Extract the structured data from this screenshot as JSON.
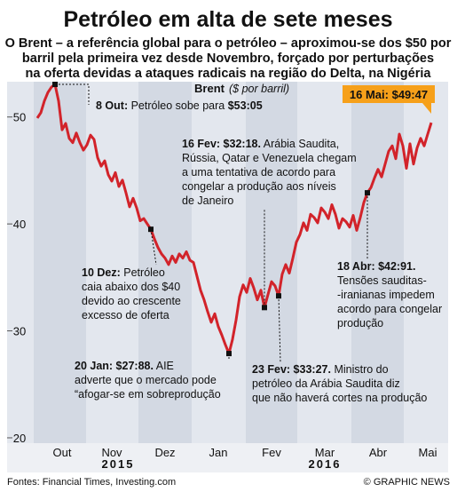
{
  "chart_data": {
    "type": "line",
    "title": "Petróleo em alta de sete meses",
    "subtitle": [
      "O Brent – a referência global para o petróleo – aproximou-se dos $50 por",
      "barril pela primeira vez desde Novembro, forçado por perturbações",
      "na oferta devidas a ataques radicais na região do Delta, na Nigéria"
    ],
    "series_label": "Brent",
    "unit_label": "($ por barril)",
    "categories": [
      null,
      null,
      null,
      null,
      null,
      null,
      null,
      "Out",
      null,
      null,
      null,
      null,
      null,
      null,
      null,
      null,
      null,
      null,
      null,
      null,
      null,
      "Nov",
      null,
      null,
      null,
      null,
      null,
      null,
      null,
      null,
      null,
      null,
      null,
      null,
      null,
      null,
      "Dez",
      null,
      null,
      null,
      null,
      null,
      null,
      null,
      null,
      null,
      null,
      null,
      null,
      null,
      null,
      "Jan",
      null,
      null,
      null,
      null,
      null,
      null,
      null,
      null,
      null,
      null,
      null,
      null,
      null,
      null,
      "Fev",
      null,
      null,
      null,
      null,
      null,
      null,
      null,
      null,
      null,
      null,
      null,
      null,
      null,
      null,
      "Mar",
      null,
      null,
      null,
      null,
      null,
      null,
      null,
      null,
      null,
      null,
      null,
      null,
      null,
      null,
      "Abr",
      null,
      null,
      null,
      null,
      null,
      null,
      null,
      null,
      null,
      null,
      null,
      null,
      null,
      "Mai",
      null
    ],
    "values": [
      49.9,
      50.4,
      51.5,
      52.3,
      52.8,
      53.05,
      51.5,
      48.8,
      49.4,
      48,
      47.6,
      48.5,
      47.6,
      46.9,
      47.4,
      48.3,
      47.9,
      46.2,
      45.4,
      45.9,
      44.6,
      44,
      44.8,
      43.5,
      44.1,
      42.9,
      41.6,
      42.4,
      41.5,
      40.3,
      40.5,
      40,
      39.5,
      38.6,
      37.8,
      37.2,
      36.8,
      36.2,
      37,
      36.4,
      37.2,
      36.8,
      37.4,
      36.6,
      36.4,
      35.1,
      33.8,
      32.9,
      31.8,
      30.8,
      31.6,
      30.4,
      29.6,
      28.7,
      27.88,
      29.2,
      31,
      33.2,
      34.3,
      33.6,
      34.9,
      34,
      32.9,
      33.8,
      32.18,
      33.4,
      34.6,
      34.2,
      33.27,
      35.3,
      36.2,
      35.4,
      36.8,
      38.3,
      39,
      40.1,
      39.4,
      40.9,
      40.6,
      40.1,
      41.5,
      41.1,
      40.5,
      41.8,
      40.9,
      39.6,
      40.5,
      40.2,
      39.7,
      40.8,
      39.4,
      40.6,
      42,
      42.91,
      43.4,
      44.3,
      45.1,
      44.4,
      45.6,
      46.8,
      47.3,
      46.1,
      48.4,
      47.3,
      45.2,
      47.5,
      45.6,
      47.1,
      48,
      47.3,
      48.4,
      49.47
    ],
    "color": "#d2232a",
    "years": [
      "2015",
      "2016"
    ],
    "ylim": [
      19.5,
      53.3
    ],
    "yticks": [
      20,
      30,
      40,
      50
    ],
    "grid": false,
    "annotations": [
      {
        "date": "8 Out:",
        "lines": [
          "Petróleo sobe para"
        ],
        "price": "$53:05"
      },
      {
        "date": "16 Fev: $32:18.",
        "lines": [
          "Arábia Saudita,",
          "Rússia, Qatar e Venezuela chegam",
          "a uma tentativa de acordo para",
          "congelar a produção aos níveis",
          "de Janeiro"
        ]
      },
      {
        "date": "10 Dez:",
        "lines": [
          "Petróleo",
          "caia abaixo dos $40",
          "devido ao crescente",
          "excesso de oferta"
        ]
      },
      {
        "date": "20 Jan: $27:88.",
        "lines": [
          "AIE",
          "adverte que o mercado pode",
          "“afogar-se em sobreprodução"
        ]
      },
      {
        "date": "23 Fev: $33:27.",
        "lines": [
          "Ministro do",
          "petróleo da Arábia Saudita diz",
          "que não haverá cortes na produção"
        ]
      },
      {
        "date": "18 Abr: $42:91.",
        "lines": [
          "Tensões sauditas-",
          "-iranianas impedem",
          "acordo para congelar",
          "produção"
        ]
      },
      {
        "date": "16 Mai: $49:47"
      }
    ],
    "source": "Fontes: Financial Times, Investing.com",
    "credit": "© GRAPHIC NEWS"
  }
}
